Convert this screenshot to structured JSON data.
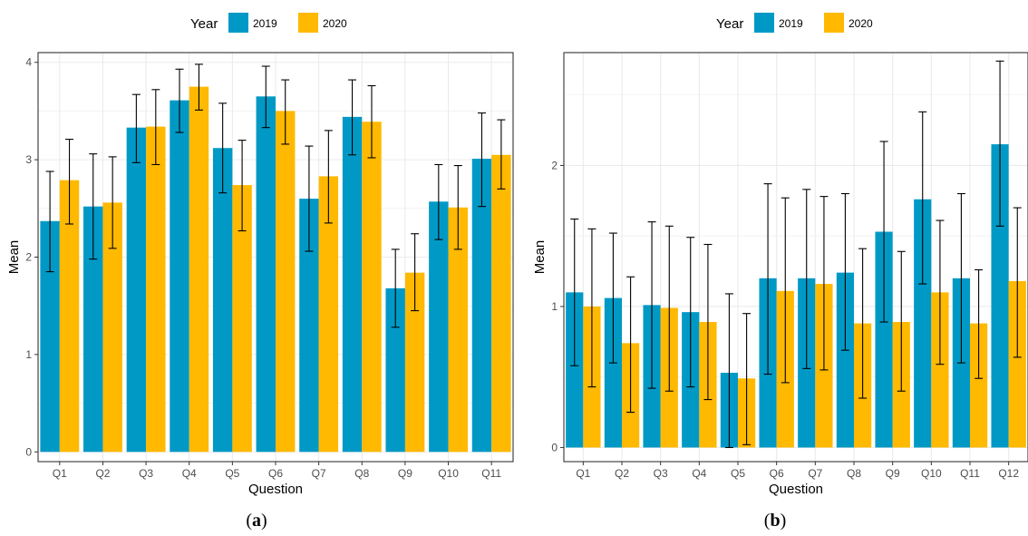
{
  "colors": {
    "2019": "#0099C6",
    "2020": "#FFB900",
    "grid": "#ebebeb",
    "errorbar": "#000000"
  },
  "chart_data": [
    {
      "type": "bar",
      "panel_label": "a",
      "legend_title": "Year",
      "legend_position": "top",
      "xlabel": "Question",
      "ylabel": "Mean",
      "ylim": [
        -0.1,
        4.1
      ],
      "yticks": [
        "0",
        "1",
        "2",
        "3",
        "4"
      ],
      "grid": true,
      "categories": [
        "Q1",
        "Q2",
        "Q3",
        "Q4",
        "Q5",
        "Q6",
        "Q7",
        "Q8",
        "Q9",
        "Q10",
        "Q11"
      ],
      "series": [
        {
          "name": "2019",
          "values": [
            2.37,
            2.52,
            3.33,
            3.61,
            3.12,
            3.65,
            2.6,
            3.44,
            1.68,
            2.57,
            3.01
          ],
          "error": [
            [
              1.85,
              2.88
            ],
            [
              1.98,
              3.06
            ],
            [
              2.97,
              3.67
            ],
            [
              3.28,
              3.93
            ],
            [
              2.66,
              3.58
            ],
            [
              3.33,
              3.96
            ],
            [
              2.06,
              3.14
            ],
            [
              3.05,
              3.82
            ],
            [
              1.28,
              2.08
            ],
            [
              2.18,
              2.95
            ],
            [
              2.52,
              3.48
            ]
          ]
        },
        {
          "name": "2020",
          "values": [
            2.79,
            2.56,
            3.34,
            3.75,
            2.74,
            3.5,
            2.83,
            3.39,
            1.84,
            2.51,
            3.05
          ],
          "error": [
            [
              2.34,
              3.21
            ],
            [
              2.09,
              3.03
            ],
            [
              2.95,
              3.72
            ],
            [
              3.51,
              3.98
            ],
            [
              2.27,
              3.2
            ],
            [
              3.16,
              3.82
            ],
            [
              2.35,
              3.3
            ],
            [
              3.02,
              3.76
            ],
            [
              1.45,
              2.24
            ],
            [
              2.08,
              2.94
            ],
            [
              2.7,
              3.41
            ]
          ]
        }
      ]
    },
    {
      "type": "bar",
      "panel_label": "b",
      "legend_title": "Year",
      "legend_position": "top",
      "xlabel": "Question",
      "ylabel": "Mean",
      "ylim": [
        -0.1,
        2.8
      ],
      "yticks": [
        "0",
        "1",
        "2"
      ],
      "grid": true,
      "categories": [
        "Q1",
        "Q2",
        "Q3",
        "Q4",
        "Q5",
        "Q6",
        "Q7",
        "Q8",
        "Q9",
        "Q10",
        "Q11",
        "Q12"
      ],
      "series": [
        {
          "name": "2019",
          "values": [
            1.1,
            1.06,
            1.01,
            0.96,
            0.53,
            1.2,
            1.2,
            1.24,
            1.53,
            1.76,
            1.2,
            2.15
          ],
          "error": [
            [
              0.58,
              1.62
            ],
            [
              0.6,
              1.52
            ],
            [
              0.42,
              1.6
            ],
            [
              0.43,
              1.49
            ],
            [
              0.0,
              1.09
            ],
            [
              0.52,
              1.87
            ],
            [
              0.56,
              1.83
            ],
            [
              0.69,
              1.8
            ],
            [
              0.89,
              2.17
            ],
            [
              1.16,
              2.38
            ],
            [
              0.6,
              1.8
            ],
            [
              1.57,
              2.74
            ]
          ]
        },
        {
          "name": "2020",
          "values": [
            1.0,
            0.74,
            0.99,
            0.89,
            0.49,
            1.11,
            1.16,
            0.88,
            0.89,
            1.1,
            0.88,
            1.18
          ],
          "error": [
            [
              0.43,
              1.55
            ],
            [
              0.25,
              1.21
            ],
            [
              0.4,
              1.57
            ],
            [
              0.34,
              1.44
            ],
            [
              0.02,
              0.95
            ],
            [
              0.46,
              1.77
            ],
            [
              0.55,
              1.78
            ],
            [
              0.35,
              1.41
            ],
            [
              0.4,
              1.39
            ],
            [
              0.59,
              1.61
            ],
            [
              0.49,
              1.26
            ],
            [
              0.64,
              1.7
            ]
          ]
        }
      ]
    }
  ]
}
